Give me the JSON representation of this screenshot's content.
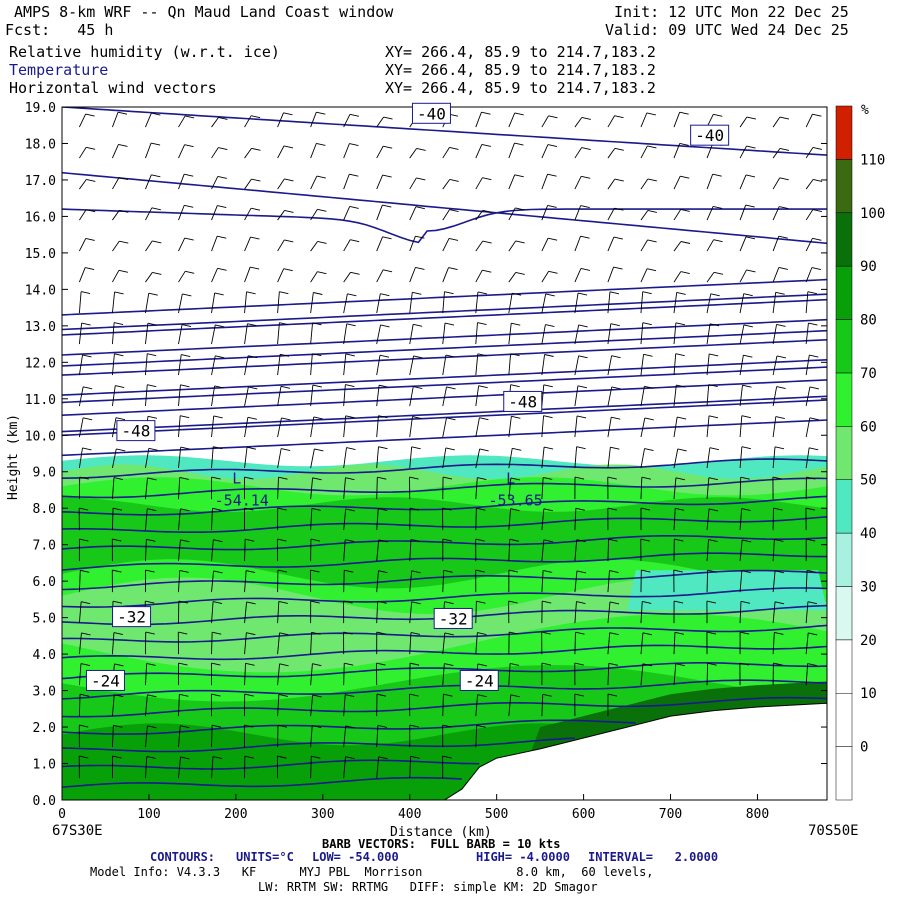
{
  "header": {
    "title": "AMPS 8-km WRF -- Qn Maud Land Coast window",
    "init": "Init: 12 UTC Mon 22 Dec 25",
    "fcst": "Fcst:   45 h",
    "valid": "Valid: 09 UTC Wed 24 Dec 25",
    "fields": [
      {
        "name": "Relative humidity (w.r.t. ice)",
        "xy": "XY= 266.4, 85.9 to 214.7,183.2"
      },
      {
        "name": "Temperature",
        "xy": "XY= 266.4, 85.9 to 214.7,183.2"
      },
      {
        "name": "Horizontal wind vectors",
        "xy": "XY= 266.4, 85.9 to 214.7,183.2"
      }
    ],
    "field_colors": [
      "#000000",
      "#1a1a8c",
      "#000000"
    ]
  },
  "chart_data": {
    "type": "heatmap",
    "xlabel": "Distance (km)",
    "ylabel": "Height (km)",
    "xlim": [
      0,
      880
    ],
    "ylim": [
      0,
      19
    ],
    "xticks": [
      0,
      100,
      200,
      300,
      400,
      500,
      600,
      700,
      800
    ],
    "yticks": [
      "0.0",
      "1.0",
      "2.0",
      "3.0",
      "4.0",
      "5.0",
      "6.0",
      "7.0",
      "8.0",
      "9.0",
      "10.0",
      "11.0",
      "12.0",
      "13.0",
      "14.0",
      "15.0",
      "16.0",
      "17.0",
      "18.0",
      "19.0"
    ],
    "x_endpoint_labels": {
      "left": "67S30E",
      "right": "70S50E"
    },
    "colorbar": {
      "unit": "%",
      "levels": [
        "0",
        "10",
        "20",
        "30",
        "40",
        "50",
        "60",
        "70",
        "80",
        "90",
        "100",
        "110"
      ],
      "colors": [
        "#ffffff",
        "#ffffff",
        "#ffffff",
        "#d8f8f0",
        "#a8f0e0",
        "#50e8c0",
        "#70e870",
        "#30f030",
        "#18c818",
        "#08a008",
        "#0a700a",
        "#3c6a10",
        "#d02000"
      ]
    },
    "terrain": [
      [
        0,
        0
      ],
      [
        440,
        0
      ],
      [
        460,
        0.3
      ],
      [
        480,
        0.9
      ],
      [
        500,
        1.15
      ],
      [
        550,
        1.4
      ],
      [
        600,
        1.7
      ],
      [
        650,
        2.0
      ],
      [
        700,
        2.3
      ],
      [
        750,
        2.45
      ],
      [
        800,
        2.55
      ],
      [
        880,
        2.65
      ]
    ],
    "contour_labels": [
      {
        "text": "-40",
        "x": 425,
        "y": 18.8
      },
      {
        "text": "-40",
        "x": 745,
        "y": 18.2
      },
      {
        "text": "-48",
        "x": 530,
        "y": 10.9
      },
      {
        "text": "-48",
        "x": 85,
        "y": 10.1
      },
      {
        "text": "-32",
        "x": 80,
        "y": 5.0
      },
      {
        "text": "-32",
        "x": 450,
        "y": 4.95
      },
      {
        "text": "-24",
        "x": 50,
        "y": 3.25
      },
      {
        "text": "-24",
        "x": 480,
        "y": 3.25
      }
    ],
    "low_labels": [
      {
        "mark": "L",
        "value": "-54.14",
        "x": 155,
        "y": 8.3
      },
      {
        "mark": "L",
        "value": "-53.65",
        "x": 470,
        "y": 8.3
      }
    ],
    "contours_info": {
      "title": "CONTOURS:",
      "units": "UNITS=°C",
      "low": "LOW= -54.000",
      "high": "HIGH= -4.0000",
      "interval": "INTERVAL=   2.0000"
    },
    "barb_info": "BARB VECTORS:  FULL BARB = 10 kts"
  },
  "model_info": {
    "line1": "Model Info: V4.3.3   KF      MYJ PBL  Morrison             8.0 km,  60 levels,",
    "line2": "LW: RRTM SW: RRTMG   DIFF: simple KM: 2D Smagor"
  }
}
